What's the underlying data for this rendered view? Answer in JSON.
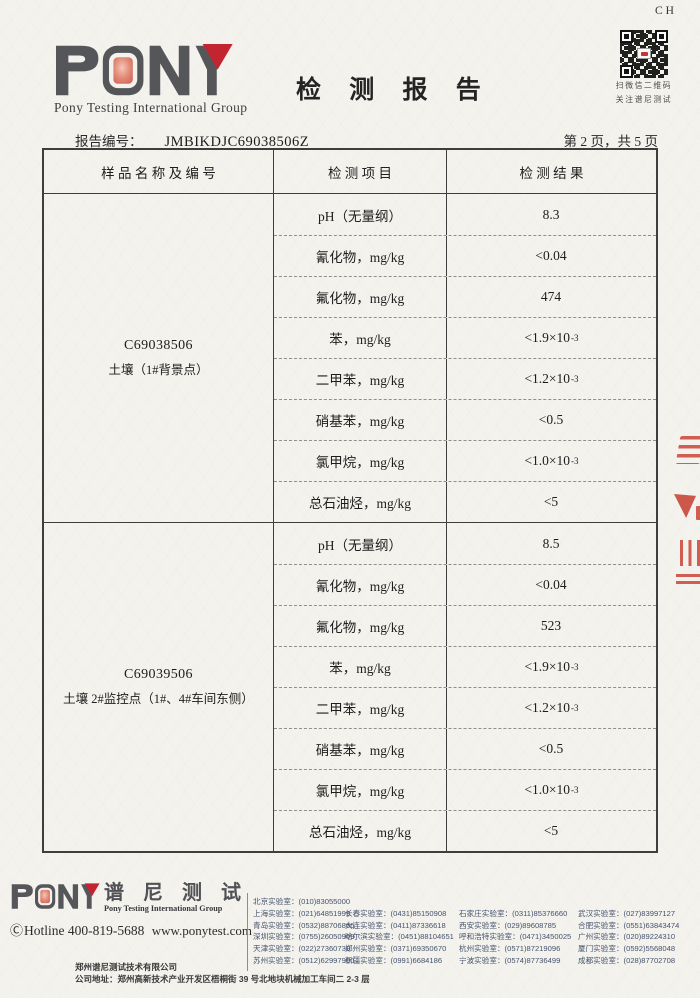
{
  "page": {
    "lang_tag": "CH"
  },
  "colors": {
    "brand_gray": "#54565a",
    "brand_red": "#c32530",
    "brand_pink": "#e08a7a",
    "stamp_red": "#cc4a3c",
    "footer_text": "#45536e"
  },
  "header": {
    "logo": {
      "brand": "PONY",
      "tagline": "Pony Testing International Group"
    },
    "title": "检 测 报 告",
    "qr": {
      "caption_line1": "扫微信二维码",
      "caption_line2": "关注谱尼测试"
    }
  },
  "report_meta": {
    "label": "报告编号：",
    "number": "JMBIKDJC69038506Z",
    "page_info": "第 2 页，共 5 页"
  },
  "table": {
    "headers": [
      "样 品 名 称 及 编 号",
      "检 测 项 目",
      "检 测 结 果"
    ],
    "sections": [
      {
        "sample_code": "C69038506",
        "sample_name": "土壤（1#背景点）",
        "rows": [
          {
            "item": "pH（无量纲）",
            "result": "8.3"
          },
          {
            "item": "氰化物，mg/kg",
            "result": "<0.04"
          },
          {
            "item": "氟化物，mg/kg",
            "result": "474"
          },
          {
            "item": "苯，mg/kg",
            "result": "<1.9×10",
            "sup": "-3"
          },
          {
            "item": "二甲苯，mg/kg",
            "result": "<1.2×10",
            "sup": "-3"
          },
          {
            "item": "硝基苯，mg/kg",
            "result": "<0.5"
          },
          {
            "item": "氯甲烷，mg/kg",
            "result": "<1.0×10",
            "sup": "-3"
          },
          {
            "item": "总石油烃，mg/kg",
            "result": "<5"
          }
        ]
      },
      {
        "sample_code": "C69039506",
        "sample_name": "土壤 2#监控点（1#、4#车间东侧）",
        "rows": [
          {
            "item": "pH（无量纲）",
            "result": "8.5"
          },
          {
            "item": "氰化物，mg/kg",
            "result": "<0.04"
          },
          {
            "item": "氟化物，mg/kg",
            "result": "523"
          },
          {
            "item": "苯，mg/kg",
            "result": "<1.9×10",
            "sup": "-3"
          },
          {
            "item": "二甲苯，mg/kg",
            "result": "<1.2×10",
            "sup": "-3"
          },
          {
            "item": "硝基苯，mg/kg",
            "result": "<0.5"
          },
          {
            "item": "氯甲烷，mg/kg",
            "result": "<1.0×10",
            "sup": "-3"
          },
          {
            "item": "总石油烃，mg/kg",
            "result": "<5"
          }
        ]
      }
    ]
  },
  "footer": {
    "logo": {
      "brand": "PONY",
      "cn_name": "谱 尼 测 试",
      "tagline": "Pony Testing International Group"
    },
    "hotline_icon": "Ⓒ",
    "hotline": "Hotline 400-819-5688",
    "website": "www.ponytest.com",
    "labs_rows": [
      [
        "北京实验室：(010)83055000",
        "",
        "",
        ""
      ],
      [
        "上海实验室：(021)64851999",
        "长春实验室：(0431)85150908",
        "石家庄实验室：(0311)85376660",
        "武汉实验室：(027)83997127"
      ],
      [
        "青岛实验室：(0532)88706866",
        "大连实验室：(0411)87336618",
        "西安实验室：(029)89608785",
        "合肥实验室：(0551)63843474"
      ],
      [
        "深圳实验室：(0755)26050909",
        "哈尔滨实验室：(0451)88104651",
        "呼和浩特实验室：(0471)3450025",
        "广州实验室：(020)89224310"
      ],
      [
        "天津实验室：(022)27360730",
        "郑州实验室：(0371)69350670",
        "杭州实验室：(0571)87219096",
        "厦门实验室：(0592)5568048"
      ],
      [
        "苏州实验室：(0512)62997900",
        "新疆实验室：(0991)6684186",
        "宁波实验室：(0574)87736499",
        "成都实验室：(028)87702708"
      ]
    ],
    "company": "郑州谱尼测试技术有限公司",
    "address": "公司地址：郑州高新技术产业开发区梧桐街 39 号北地块机械加工车间二 2-3 层"
  }
}
